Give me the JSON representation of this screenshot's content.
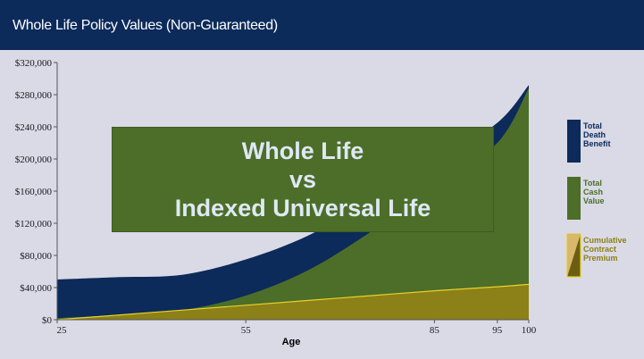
{
  "header": {
    "title": "Whole Life Policy Values (Non-Guaranteed)"
  },
  "banner": {
    "line1": "Whole Life",
    "line2": "vs",
    "line3": "Indexed Universal Life"
  },
  "colors": {
    "header": "#0c2a5a",
    "death_benefit": "#0c2a5a",
    "cash_value": "#4d6e28",
    "premium": "#8c8018",
    "premium_line": "#e8d22a",
    "banner": "#4d6e28",
    "background": "#d9dae6"
  },
  "chart_data": {
    "type": "area",
    "xlabel": "Age",
    "ylabel": "",
    "x": [
      25,
      35,
      45,
      55,
      65,
      75,
      85,
      95,
      100
    ],
    "xticks": [
      25,
      55,
      85,
      95,
      100
    ],
    "xlim": [
      25,
      100
    ],
    "ylim": [
      0,
      320000
    ],
    "yticks": [
      "$0",
      "$40,000",
      "$80,000",
      "$120,000",
      "$160,000",
      "$200,000",
      "$240,000",
      "$280,000",
      "$320,000"
    ],
    "ytick_values": [
      0,
      40000,
      80000,
      120000,
      160000,
      200000,
      240000,
      280000,
      320000
    ],
    "series": [
      {
        "name": "Total Death Benefit",
        "color": "#0c2a5a",
        "values": [
          50000,
          53000,
          56000,
          75000,
          105000,
          150000,
          195000,
          245000,
          292000
        ]
      },
      {
        "name": "Total Cash Value",
        "color": "#4d6e28",
        "values": [
          2000,
          6000,
          12000,
          30000,
          62000,
          110000,
          165000,
          220000,
          288000
        ]
      },
      {
        "name": "Cumulative Contract Premium",
        "color": "#8c8018",
        "values": [
          0,
          6000,
          12000,
          18000,
          24000,
          30000,
          36000,
          41000,
          44000
        ]
      }
    ],
    "legend": [
      {
        "label": "Total Death Benefit",
        "lines": [
          "Total",
          "Death",
          "Benefit"
        ],
        "color": "#0c2a5a"
      },
      {
        "label": "Total Cash Value",
        "lines": [
          "Total",
          "Cash",
          "Value"
        ],
        "color": "#4d6e28"
      },
      {
        "label": "Cumulative Contract Premium",
        "lines": [
          "Cumulative",
          "Contract",
          "Premium"
        ],
        "color": "#8c8018"
      }
    ],
    "legend_position": "right",
    "grid": false
  }
}
